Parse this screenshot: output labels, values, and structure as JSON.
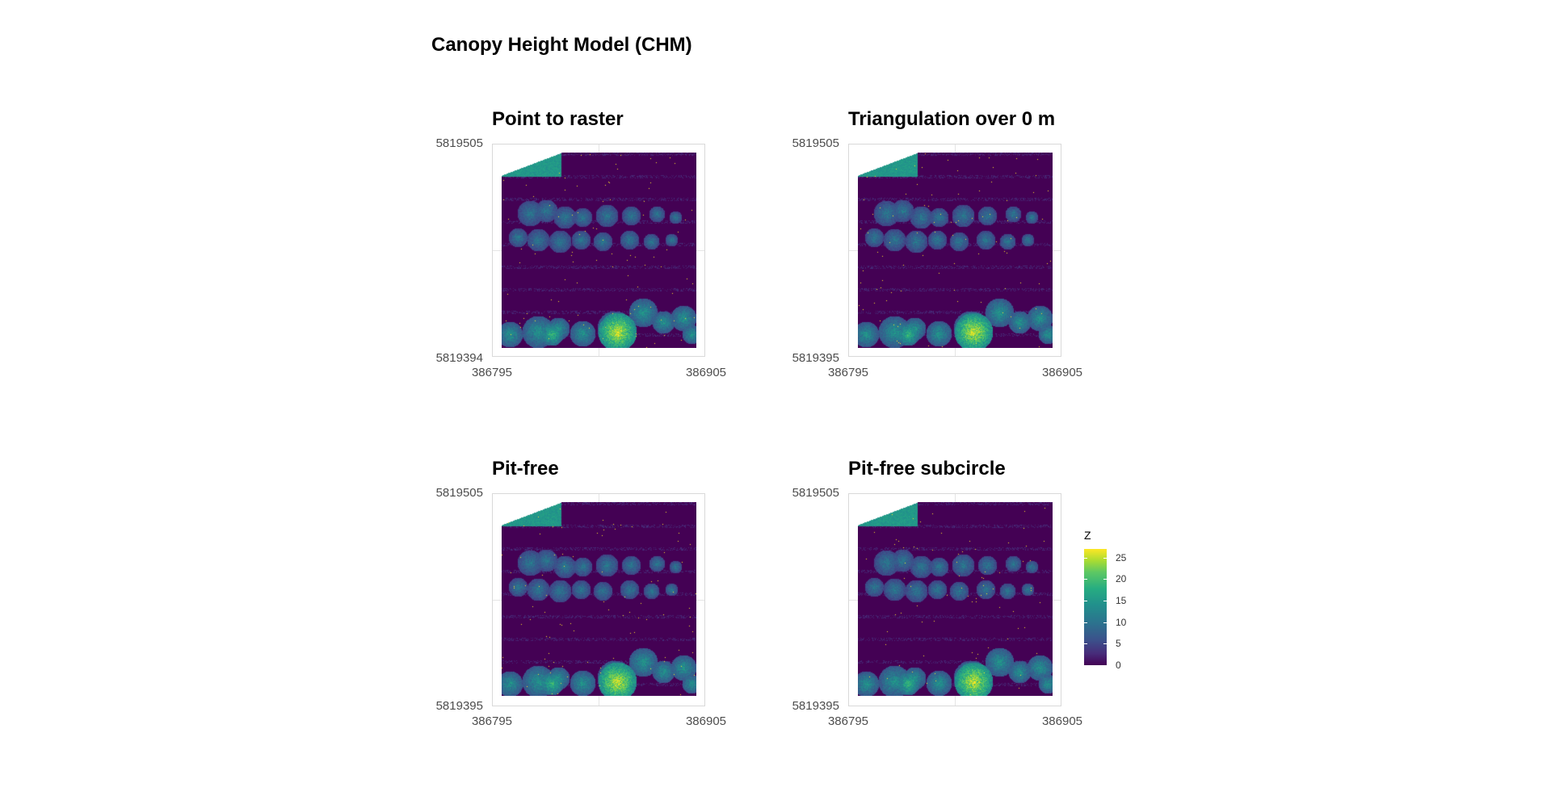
{
  "title": "Canopy Height Model (CHM)",
  "chart_data": [
    {
      "type": "heatmap",
      "title": "Point to raster",
      "x_ticks": [
        "386795",
        "386905"
      ],
      "y_ticks": [
        "5819505",
        "5819394"
      ],
      "xlim": [
        386795,
        386905
      ],
      "ylim": [
        5819394,
        5819505
      ],
      "fill": "Z",
      "grid": true
    },
    {
      "type": "heatmap",
      "title": "Triangulation over 0 m",
      "x_ticks": [
        "386795",
        "386905"
      ],
      "y_ticks": [
        "5819505",
        "5819395"
      ],
      "xlim": [
        386795,
        386905
      ],
      "ylim": [
        5819395,
        5819505
      ],
      "fill": "Z",
      "grid": true
    },
    {
      "type": "heatmap",
      "title": "Pit-free",
      "x_ticks": [
        "386795",
        "386905"
      ],
      "y_ticks": [
        "5819505",
        "5819395"
      ],
      "xlim": [
        386795,
        386905
      ],
      "ylim": [
        5819395,
        5819505
      ],
      "fill": "Z",
      "grid": true
    },
    {
      "type": "heatmap",
      "title": "Pit-free subcircle",
      "x_ticks": [
        "386795",
        "386905"
      ],
      "y_ticks": [
        "5819505",
        "5819395"
      ],
      "xlim": [
        386795,
        386905
      ],
      "ylim": [
        5819395,
        5819505
      ],
      "fill": "Z",
      "grid": true
    }
  ],
  "legend": {
    "title": "Z",
    "labels": [
      "25",
      "20",
      "15",
      "10",
      "5",
      "0"
    ],
    "range": [
      0,
      27
    ],
    "colormap": "viridis",
    "placement": "right"
  }
}
